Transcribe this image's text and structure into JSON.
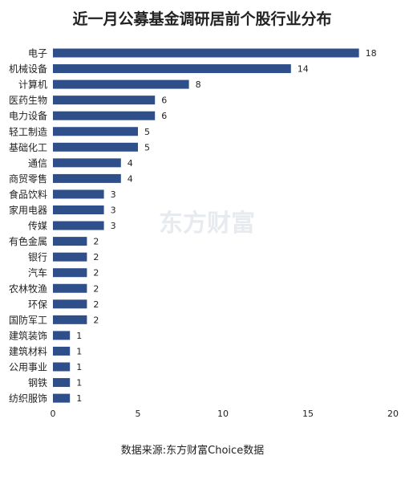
{
  "chart_data": {
    "type": "bar",
    "orientation": "horizontal",
    "title": "近一月公募基金调研居前个股行业分布",
    "source": "数据来源:东方财富Choice数据",
    "watermark": "东方财富",
    "categories": [
      "电子",
      "机械设备",
      "计算机",
      "医药生物",
      "电力设备",
      "轻工制造",
      "基础化工",
      "通信",
      "商贸零售",
      "食品饮料",
      "家用电器",
      "传媒",
      "有色金属",
      "银行",
      "汽车",
      "农林牧渔",
      "环保",
      "国防军工",
      "建筑装饰",
      "建筑材料",
      "公用事业",
      "钢铁",
      "纺织服饰"
    ],
    "values": [
      18,
      14,
      8,
      6,
      6,
      5,
      5,
      4,
      4,
      3,
      3,
      3,
      2,
      2,
      2,
      2,
      2,
      2,
      1,
      1,
      1,
      1,
      1
    ],
    "xlim": [
      0,
      20
    ],
    "xticks": [
      0,
      5,
      10,
      15,
      20
    ],
    "grid": false,
    "data_labels": true,
    "bar_color": "#2f4f8a"
  }
}
